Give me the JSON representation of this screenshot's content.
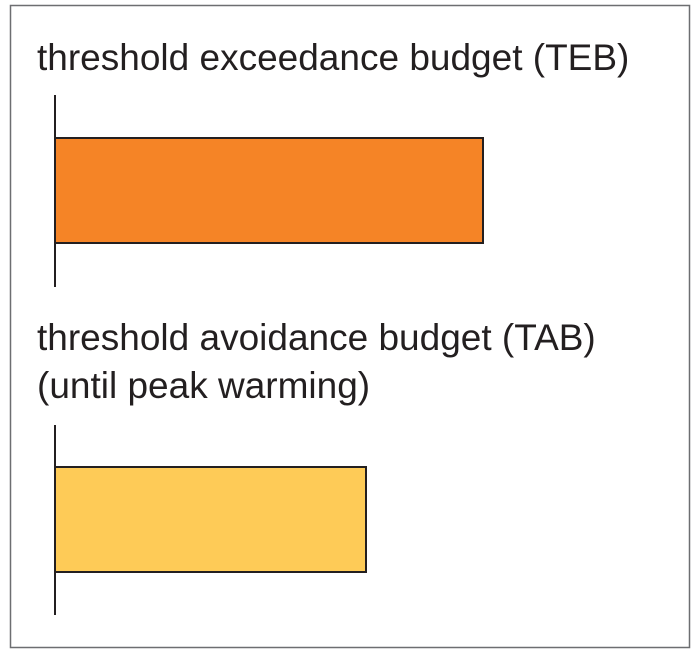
{
  "panels": [
    {
      "label": "threshold exceedance budget (TEB)"
    },
    {
      "label": "threshold avoidance budget (TAB)",
      "sublabel": "(until peak warming)"
    }
  ]
}
